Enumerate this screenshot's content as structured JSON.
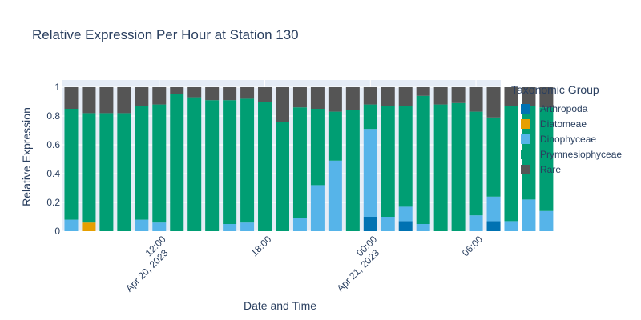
{
  "title": "Relative Expression Per Hour at Station 130",
  "xlabel": "Date and Time",
  "ylabel": "Relative Expression",
  "legend": {
    "title": "Taxonomic Group",
    "items": [
      {
        "label": "Arthropoda",
        "color": "#0072b2"
      },
      {
        "label": "Diatomeae",
        "color": "#e69f00"
      },
      {
        "label": "Dinophyceae",
        "color": "#56b4e9"
      },
      {
        "label": "Prymnesiophyceae",
        "color": "#009e73"
      },
      {
        "label": "Rare",
        "color": "#555555"
      }
    ]
  },
  "chart_data": {
    "type": "bar",
    "stacked": true,
    "ylim": [
      0,
      1
    ],
    "yticks": [
      "0",
      "0.2",
      "0.4",
      "0.6",
      "0.8",
      "1"
    ],
    "x_hours_from_apr20_midnight": [
      7,
      8,
      9,
      10,
      11,
      12,
      13,
      14,
      15,
      16,
      17,
      18,
      19,
      20,
      21,
      22,
      23,
      24,
      25,
      26,
      27,
      28,
      29,
      30,
      31,
      32,
      33,
      34
    ],
    "xticks": [
      {
        "hour": 12,
        "line1": "12:00",
        "line2": "Apr 20, 2023"
      },
      {
        "hour": 18,
        "line1": "18:00",
        "line2": ""
      },
      {
        "hour": 24,
        "line1": "00:00",
        "line2": "Apr 21, 2023"
      },
      {
        "hour": 30,
        "line1": "06:00",
        "line2": ""
      }
    ],
    "series": [
      {
        "name": "Arthropoda",
        "color": "#0072b2",
        "values": [
          0,
          0,
          0,
          0,
          0,
          0,
          0,
          0,
          0,
          0,
          0,
          0,
          0,
          0,
          0,
          0,
          0,
          0.1,
          0,
          0.07,
          0,
          0,
          0,
          0,
          0.07,
          0,
          0,
          0
        ]
      },
      {
        "name": "Diatomeae",
        "color": "#e69f00",
        "values": [
          0,
          0.06,
          0,
          0,
          0,
          0,
          0,
          0,
          0,
          0,
          0,
          0,
          0,
          0,
          0,
          0,
          0,
          0,
          0,
          0,
          0,
          0,
          0,
          0,
          0,
          0,
          0,
          0
        ]
      },
      {
        "name": "Dinophyceae",
        "color": "#56b4e9",
        "values": [
          0.08,
          0,
          0,
          0,
          0.08,
          0.06,
          0,
          0,
          0,
          0.05,
          0.06,
          0,
          0,
          0.09,
          0.32,
          0.49,
          0,
          0.61,
          0.1,
          0.1,
          0.05,
          0,
          0,
          0.11,
          0.17,
          0.07,
          0.22,
          0.14
        ]
      },
      {
        "name": "Prymnesiophyceae",
        "color": "#009e73",
        "values": [
          0.77,
          0.76,
          0.82,
          0.82,
          0.79,
          0.82,
          0.95,
          0.93,
          0.91,
          0.86,
          0.86,
          0.9,
          0.76,
          0.77,
          0.53,
          0.34,
          0.84,
          0.17,
          0.77,
          0.7,
          0.89,
          0.88,
          0.89,
          0.72,
          0.55,
          0.8,
          0.65,
          0.72
        ]
      },
      {
        "name": "Rare",
        "color": "#555555",
        "values": [
          0.15,
          0.18,
          0.18,
          0.18,
          0.13,
          0.12,
          0.05,
          0.07,
          0.09,
          0.09,
          0.08,
          0.1,
          0.24,
          0.14,
          0.15,
          0.17,
          0.16,
          0.12,
          0.13,
          0.13,
          0.06,
          0.12,
          0.11,
          0.17,
          0.21,
          0.13,
          0.13,
          0.14
        ]
      }
    ]
  }
}
